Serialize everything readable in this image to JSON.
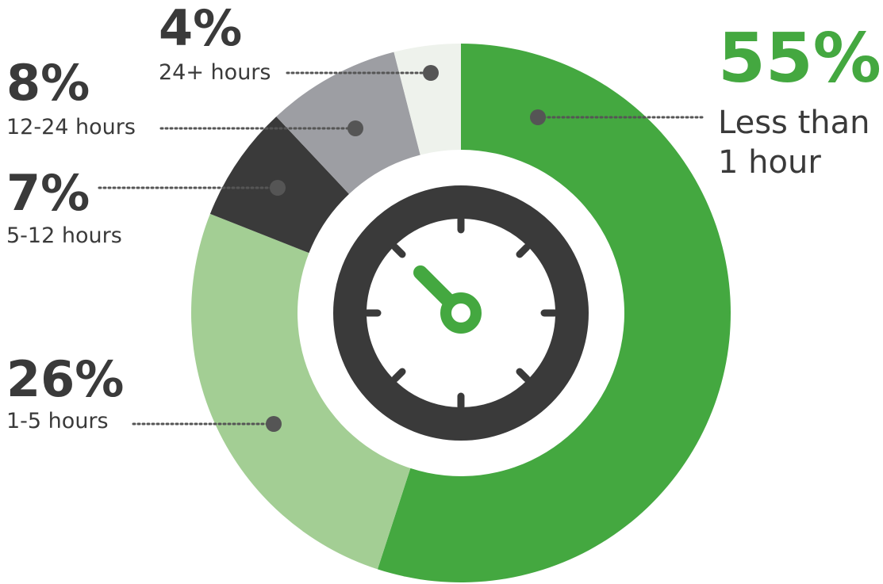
{
  "chart_data": {
    "type": "donut",
    "categories": [
      "Less than 1 hour",
      "1-5 hours",
      "5-12 hours",
      "12-24 hours",
      "24+ hours"
    ],
    "values": [
      55,
      26,
      7,
      8,
      4
    ],
    "value_labels": [
      "55%",
      "26%",
      "7%",
      "8%",
      "4%"
    ],
    "colors": [
      "#44a840",
      "#a3ce94",
      "#3a3a3a",
      "#9d9ea3",
      "#eef2ec"
    ]
  }
}
